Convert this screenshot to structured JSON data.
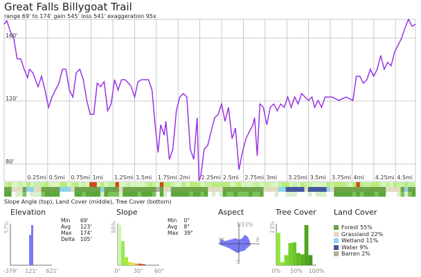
{
  "header": {
    "title": "Great Falls Billygoat Trail",
    "subtitle": "range 69' to 174'  gain 545'  loss 541'  exaggeration 95x"
  },
  "chart_data": [
    {
      "type": "line",
      "title": "Great Falls Billygoat Trail",
      "xlabel": "",
      "ylabel": "",
      "line_color": "#9932e6",
      "grid": true,
      "x_ticks": [
        "0.25mi",
        "0.5mi",
        "0.75mi",
        "1mi",
        "1.25mi",
        "1.5mi",
        "1.75mi",
        "2mi",
        "2.25mi",
        "2.5mi",
        "2.75mi",
        "3mi",
        "3.25mi",
        "3.5mi",
        "3.75mi",
        "4mi",
        "4.25mi",
        "4.5mi"
      ],
      "x_tick_values": [
        0.25,
        0.5,
        0.75,
        1,
        1.25,
        1.5,
        1.75,
        2,
        2.25,
        2.5,
        2.75,
        3,
        3.25,
        3.5,
        3.75,
        4,
        4.25,
        4.5
      ],
      "y_ticks": [
        "160'",
        "120'",
        "80'"
      ],
      "y_tick_values": [
        160,
        120,
        80
      ],
      "xlim": [
        0,
        4.73
      ],
      "points": [
        [
          0,
          168.8
        ],
        [
          0.03,
          171
        ],
        [
          0.07,
          164.4
        ],
        [
          0.11,
          160
        ],
        [
          0.15,
          146.8
        ],
        [
          0.19,
          146.8
        ],
        [
          0.23,
          140.2
        ],
        [
          0.27,
          134.9
        ],
        [
          0.29,
          140.2
        ],
        [
          0.33,
          138
        ],
        [
          0.39,
          129.2
        ],
        [
          0.43,
          135.8
        ],
        [
          0.47,
          127
        ],
        [
          0.51,
          116
        ],
        [
          0.55,
          122.6
        ],
        [
          0.59,
          127
        ],
        [
          0.63,
          131.4
        ],
        [
          0.67,
          140.2
        ],
        [
          0.71,
          140.2
        ],
        [
          0.75,
          127
        ],
        [
          0.79,
          122.6
        ],
        [
          0.83,
          138
        ],
        [
          0.87,
          140.2
        ],
        [
          0.91,
          133.6
        ],
        [
          0.95,
          120.4
        ],
        [
          0.99,
          111.6
        ],
        [
          1.03,
          111.6
        ],
        [
          1.07,
          131.4
        ],
        [
          1.11,
          129.2
        ],
        [
          1.15,
          132.3
        ],
        [
          1.19,
          113.8
        ],
        [
          1.23,
          118.2
        ],
        [
          1.27,
          133.6
        ],
        [
          1.31,
          127
        ],
        [
          1.35,
          133.6
        ],
        [
          1.39,
          133.6
        ],
        [
          1.43,
          131.4
        ],
        [
          1.46,
          129.2
        ],
        [
          1.5,
          122.6
        ],
        [
          1.54,
          132.3
        ],
        [
          1.58,
          133.6
        ],
        [
          1.66,
          133.6
        ],
        [
          1.7,
          127
        ],
        [
          1.74,
          102.8
        ],
        [
          1.77,
          87.4
        ],
        [
          1.8,
          105
        ],
        [
          1.84,
          98.4
        ],
        [
          1.86,
          107.2
        ],
        [
          1.9,
          83
        ],
        [
          1.94,
          89.6
        ],
        [
          1.98,
          113.8
        ],
        [
          2.02,
          122.6
        ],
        [
          2.06,
          124.8
        ],
        [
          2.1,
          122.6
        ],
        [
          2.14,
          89.6
        ],
        [
          2.18,
          83
        ],
        [
          2.22,
          109.4
        ],
        [
          2.24,
          69.6
        ],
        [
          2.26,
          72
        ],
        [
          2.3,
          89.6
        ],
        [
          2.34,
          91.8
        ],
        [
          2.38,
          100.6
        ],
        [
          2.42,
          109.4
        ],
        [
          2.46,
          111.6
        ],
        [
          2.5,
          118.2
        ],
        [
          2.54,
          107.2
        ],
        [
          2.58,
          116
        ],
        [
          2.62,
          96.2
        ],
        [
          2.66,
          102.8
        ],
        [
          2.7,
          76.4
        ],
        [
          2.74,
          87.4
        ],
        [
          2.78,
          96.2
        ],
        [
          2.82,
          100.6
        ],
        [
          2.86,
          105
        ],
        [
          2.88,
          109.4
        ],
        [
          2.91,
          85.2
        ],
        [
          2.94,
          118.2
        ],
        [
          2.98,
          116
        ],
        [
          3.02,
          105
        ],
        [
          3.06,
          116
        ],
        [
          3.1,
          118.2
        ],
        [
          3.14,
          113.8
        ],
        [
          3.18,
          118.2
        ],
        [
          3.22,
          116
        ],
        [
          3.26,
          122.6
        ],
        [
          3.3,
          116
        ],
        [
          3.34,
          122.6
        ],
        [
          3.38,
          118.2
        ],
        [
          3.42,
          124.8
        ],
        [
          3.46,
          122.6
        ],
        [
          3.5,
          120.4
        ],
        [
          3.54,
          122.6
        ],
        [
          3.57,
          116
        ],
        [
          3.61,
          120.4
        ],
        [
          3.65,
          116
        ],
        [
          3.69,
          122.6
        ],
        [
          3.77,
          122.6
        ],
        [
          3.85,
          120.4
        ],
        [
          3.93,
          122.6
        ],
        [
          4.01,
          120.4
        ],
        [
          4.05,
          135.8
        ],
        [
          4.09,
          135.8
        ],
        [
          4.13,
          131.4
        ],
        [
          4.17,
          133.6
        ],
        [
          4.21,
          140.2
        ],
        [
          4.25,
          135.8
        ],
        [
          4.29,
          140.2
        ],
        [
          4.33,
          149
        ],
        [
          4.37,
          140.2
        ],
        [
          4.41,
          144.6
        ],
        [
          4.45,
          142.4
        ],
        [
          4.49,
          151.2
        ],
        [
          4.53,
          155.6
        ],
        [
          4.57,
          160
        ],
        [
          4.61,
          166.6
        ],
        [
          4.65,
          171.9
        ],
        [
          4.69,
          167.5
        ],
        [
          4.73,
          168.8
        ]
      ]
    },
    {
      "type": "bar",
      "title": "Elevation",
      "x_ticks": [
        "-379'",
        "121'",
        "621'"
      ],
      "y_max_label": "57%",
      "color": "#7b7bf5",
      "bins": [
        {
          "from": 71,
          "to": 121,
          "value": 43
        },
        {
          "from": 121,
          "to": 171,
          "value": 57
        }
      ]
    },
    {
      "type": "bar",
      "title": "Slope",
      "x_ticks": [
        "0°",
        "30°",
        "60°"
      ],
      "y_max_label": "50%",
      "bins": [
        {
          "from": 0,
          "to": 5,
          "value": 50,
          "color": "#ccf5b0"
        },
        {
          "from": 5,
          "to": 10,
          "value": 30,
          "color": "#9be85c"
        },
        {
          "from": 10,
          "to": 15,
          "value": 10,
          "color": "#a6ea3a"
        },
        {
          "from": 15,
          "to": 20,
          "value": 4,
          "color": "#c8ef3a"
        },
        {
          "from": 20,
          "to": 25,
          "value": 3,
          "color": "#e8e040"
        },
        {
          "from": 25,
          "to": 30,
          "value": 2,
          "color": "#f0a030"
        },
        {
          "from": 30,
          "to": 35,
          "value": 2,
          "color": "#d05020"
        },
        {
          "from": 35,
          "to": 40,
          "value": 1,
          "color": "#a01818"
        }
      ]
    },
    {
      "type": "polar",
      "title": "Aspect",
      "labels": {
        "N": "N",
        "E": "E",
        "S": "S",
        "W": "W"
      },
      "max_label": "33%",
      "color": "#7b7bf5"
    },
    {
      "type": "bar",
      "title": "Tree Cover",
      "x_ticks": [
        "0%",
        "50%",
        "100%"
      ],
      "y_max_label": "23%",
      "bins": [
        {
          "value": 18.5,
          "color": "#8ee83a"
        },
        {
          "value": 1.8,
          "color": "#86e035"
        },
        {
          "value": 5.8,
          "color": "#7ed830"
        },
        {
          "value": 12.7,
          "color": "#74cf2c"
        },
        {
          "value": 13.1,
          "color": "#6bc528"
        },
        {
          "value": 7,
          "color": "#62ba25"
        },
        {
          "value": 6.2,
          "color": "#5aaf22"
        },
        {
          "value": 23,
          "color": "#52a520"
        },
        {
          "value": 5.8,
          "color": "#4a9a1d"
        }
      ]
    }
  ],
  "stats": {
    "elevation": [
      [
        "Min",
        "69'"
      ],
      [
        "Avg",
        "123'"
      ],
      [
        "Max",
        "174'"
      ],
      [
        "Delta",
        "105'"
      ]
    ],
    "slope": [
      [
        "Min",
        "0°"
      ],
      [
        "Avg",
        "8°"
      ],
      [
        "Max",
        "39°"
      ]
    ]
  },
  "land_cover": {
    "title": "Land Cover",
    "items": [
      {
        "label": "Forest 55%",
        "color": "#6fa34a"
      },
      {
        "label": "Grassland 22%",
        "color": "#e1dcc0"
      },
      {
        "label": "Wetland 11%",
        "color": "#8ed4ec"
      },
      {
        "label": "Water 9%",
        "color": "#44589e"
      },
      {
        "label": "Barren 2%",
        "color": "#b5aea0"
      }
    ]
  },
  "strips": {
    "caption": "Slope Angle (top), Land Cover (middle), Tree Cover (bottom)",
    "land_sequence": "FFGGGFWWGGFFFFFWWWGFFFFFFFWFFFFGFFFFFFFFFBFGGFFFFFFFFFFGGGGFFFFFFFFFFFGGGGWWAAAAAGAAAAAWGFFFFFFFFFFFFFFGGGGFWFF",
    "slope_hot": [
      1.0,
      1.27,
      1.78,
      1.8,
      4.05
    ]
  }
}
